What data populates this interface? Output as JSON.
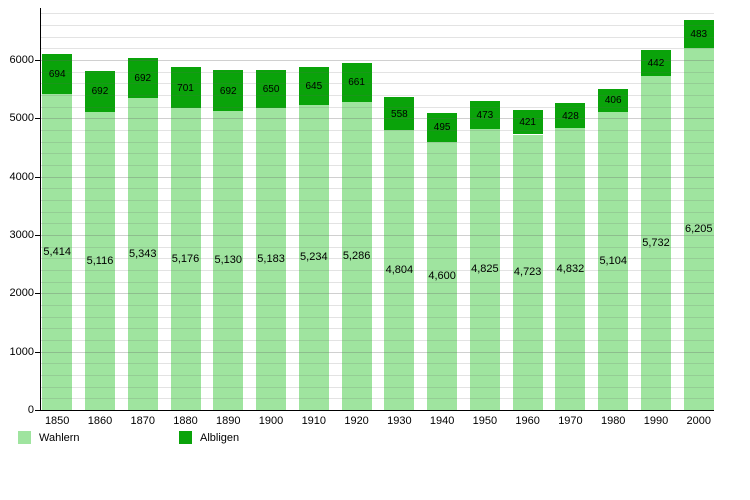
{
  "chart_data": {
    "type": "bar",
    "stacked": true,
    "title": "",
    "xlabel": "",
    "ylabel": "",
    "categories": [
      "1850",
      "1860",
      "1870",
      "1880",
      "1890",
      "1900",
      "1910",
      "1920",
      "1930",
      "1940",
      "1950",
      "1960",
      "1970",
      "1980",
      "1990",
      "2000"
    ],
    "series": [
      {
        "name": "Wahlern",
        "color": "#9fe49f",
        "values": [
          5414,
          5116,
          5343,
          5176,
          5130,
          5183,
          5234,
          5286,
          4804,
          4600,
          4825,
          4723,
          4832,
          5104,
          5732,
          6205
        ]
      },
      {
        "name": "Albligen",
        "color": "#0aa30a",
        "values": [
          694,
          692,
          692,
          701,
          692,
          650,
          645,
          661,
          558,
          495,
          473,
          421,
          428,
          406,
          442,
          483
        ]
      }
    ],
    "yticks": [
      0,
      1000,
      2000,
      3000,
      4000,
      5000,
      6000
    ],
    "ylim": [
      0,
      6880
    ],
    "grid": "horizontal minor lines every 200 units",
    "value_labels": "centered inside each segment, Wahlern values use thousands comma",
    "legend_position": "bottom-left"
  },
  "legend": {
    "wahlern": "Wahlern",
    "albligen": "Albligen"
  }
}
